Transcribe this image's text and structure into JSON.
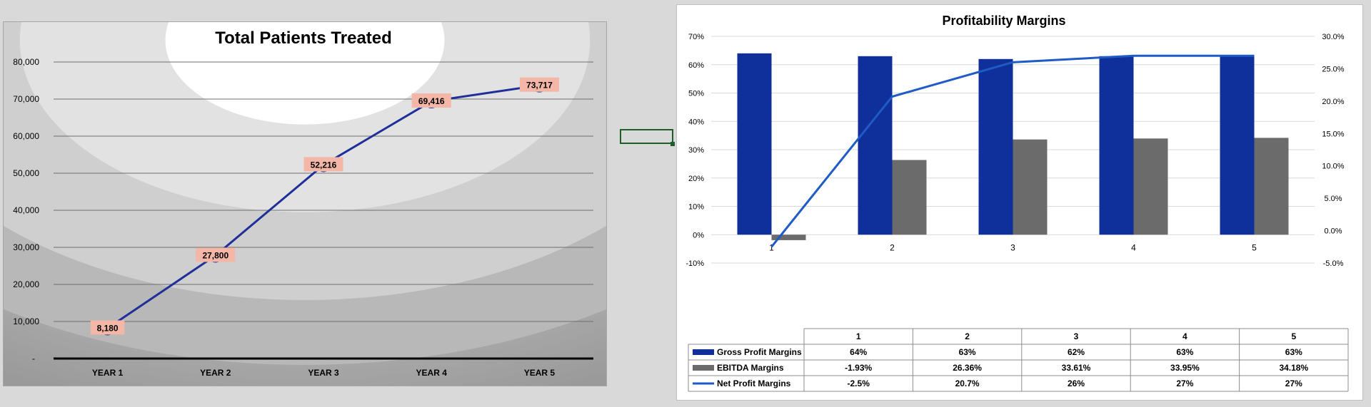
{
  "left_chart": {
    "chart_data": {
      "type": "line",
      "title": "Total Patients Treated",
      "categories": [
        "YEAR 1",
        "YEAR 2",
        "YEAR 3",
        "YEAR 4",
        "YEAR 5"
      ],
      "values": [
        8180,
        27800,
        52216,
        69416,
        73717
      ],
      "value_labels": [
        "8,180",
        "27,800",
        "52,216",
        "69,416",
        "73,717"
      ],
      "ylim": [
        0,
        80000
      ],
      "y_ticks": [
        {
          "value": 0,
          "label": "-"
        },
        {
          "value": 10000,
          "label": "10,000"
        },
        {
          "value": 20000,
          "label": "20,000"
        },
        {
          "value": 30000,
          "label": "30,000"
        },
        {
          "value": 40000,
          "label": "40,000"
        },
        {
          "value": 50000,
          "label": "50,000"
        },
        {
          "value": 60000,
          "label": "60,000"
        },
        {
          "value": 70000,
          "label": "70,000"
        },
        {
          "value": 80000,
          "label": "80,000"
        }
      ],
      "grid": true,
      "colors": {
        "line": "#1f2f99",
        "label_bg": "#f4b6a6"
      }
    }
  },
  "right_chart": {
    "chart_data": {
      "type": "bar",
      "title": "Profitability Margins",
      "categories": [
        "1",
        "2",
        "3",
        "4",
        "5"
      ],
      "series": [
        {
          "name": "Gross Profit Margins",
          "type": "bar",
          "axis": "left",
          "values": [
            64,
            63,
            62,
            63,
            63
          ],
          "table": [
            "64%",
            "63%",
            "62%",
            "63%",
            "63%"
          ],
          "color": "#0f2f9a"
        },
        {
          "name": "EBITDA Margins",
          "type": "bar",
          "axis": "left",
          "values": [
            -1.93,
            26.36,
            33.61,
            33.95,
            34.18
          ],
          "table": [
            "-1.93%",
            "26.36%",
            "33.61%",
            "33.95%",
            "34.18%"
          ],
          "color": "#6b6b6b"
        },
        {
          "name": "Net Profit Margins",
          "type": "line",
          "axis": "right",
          "values": [
            -2.5,
            20.7,
            26,
            27,
            27
          ],
          "table": [
            "-2.5%",
            "20.7%",
            "26%",
            "27%",
            "27%"
          ],
          "color": "#1f5bc4"
        }
      ],
      "ylim_left": [
        -10,
        70
      ],
      "y_ticks_left": [
        "-10%",
        "0%",
        "10%",
        "20%",
        "30%",
        "40%",
        "50%",
        "60%",
        "70%"
      ],
      "ylim_right": [
        -5,
        30
      ],
      "y_ticks_right": [
        "-5.0%",
        "0.0%",
        "5.0%",
        "10.0%",
        "15.0%",
        "20.0%",
        "25.0%",
        "30.0%"
      ],
      "grid": true,
      "legend": "data-table"
    }
  }
}
